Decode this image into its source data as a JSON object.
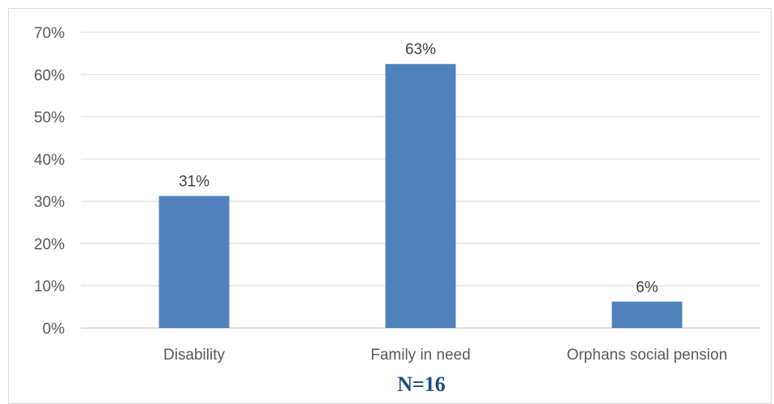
{
  "chart_data": {
    "type": "bar",
    "categories": [
      "Disability",
      "Family in need",
      "Orphans social pension"
    ],
    "values": [
      31.25,
      62.5,
      6.25
    ],
    "data_labels": [
      "31%",
      "63%",
      "6%"
    ],
    "title": "",
    "xlabel": "",
    "ylabel": "",
    "ylim": [
      0,
      70
    ],
    "y_ticks": [
      "0%",
      "10%",
      "20%",
      "30%",
      "40%",
      "50%",
      "60%",
      "70%"
    ],
    "grid": true,
    "legend": "none",
    "bar_color": "#4f81bd",
    "note": "N=16"
  }
}
